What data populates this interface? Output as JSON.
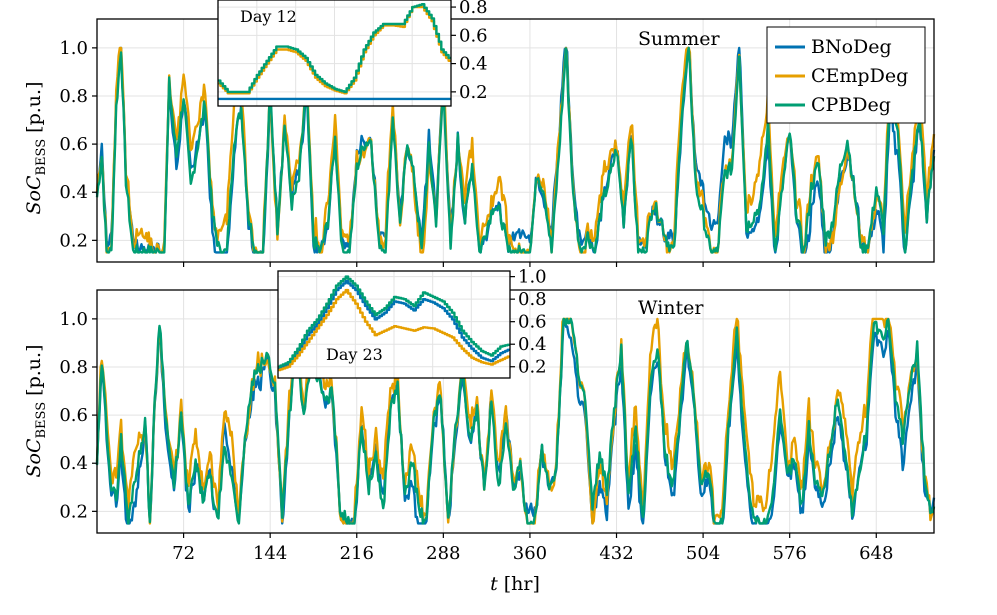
{
  "colors": {
    "BNoDeg": "#0072b2",
    "CEmpDeg": "#e69f00",
    "CPBDeg": "#009e73"
  },
  "chart_data": [
    {
      "type": "line",
      "panel": "top",
      "season_label": "Summer",
      "ylabel": "SoC_BESS [p.u.]",
      "ylabel_parts": {
        "main": "SoC",
        "sub": "BESS",
        "unit": "[p.u.]"
      },
      "xlim": [
        0,
        696
      ],
      "ylim": [
        0.11,
        1.12
      ],
      "xticks": [
        72,
        144,
        216,
        288,
        360,
        432,
        504,
        576,
        648
      ],
      "yticks": [
        0.2,
        0.4,
        0.6,
        0.8,
        1.0
      ],
      "ytick_labels": [
        "0.2",
        "0.4",
        "0.6",
        "0.8",
        "1.0"
      ],
      "legend": [
        "BNoDeg",
        "CEmpDeg",
        "CPBDeg"
      ],
      "legend_position": "top-right",
      "series_keys": [
        {
          "name": "CPBDeg",
          "x": [
            0,
            4,
            8,
            12,
            16,
            20,
            24,
            30,
            36,
            40,
            44,
            48,
            52,
            56,
            60,
            66,
            72,
            78,
            84,
            90,
            96,
            102,
            108,
            114,
            120,
            126,
            132,
            138,
            144,
            150,
            156,
            162,
            168,
            174,
            180,
            186,
            192,
            198,
            204,
            210,
            216,
            222,
            228,
            234,
            240,
            246,
            252,
            258,
            264,
            270,
            276,
            282,
            288,
            294,
            300,
            306,
            312,
            318,
            324,
            330,
            336,
            342,
            348,
            354,
            360,
            366,
            372,
            378,
            384,
            390,
            396,
            402,
            408,
            414,
            420,
            426,
            432,
            438,
            444,
            450,
            456,
            462,
            468,
            474,
            480,
            486,
            492,
            498,
            504,
            510,
            516,
            522,
            528,
            534,
            540,
            546,
            552,
            558,
            564,
            570,
            576,
            582,
            588,
            594,
            600,
            606,
            612,
            618,
            624,
            630,
            636,
            642,
            648,
            654,
            660,
            666,
            672,
            678,
            684,
            690,
            696
          ],
          "y": [
            0.38,
            0.55,
            0.15,
            0.15,
            0.75,
            1.0,
            0.45,
            0.15,
            0.15,
            0.15,
            0.15,
            0.15,
            0.15,
            0.15,
            0.85,
            0.55,
            0.8,
            0.42,
            0.6,
            0.78,
            0.3,
            0.15,
            0.15,
            0.62,
            0.75,
            0.3,
            0.15,
            0.15,
            0.82,
            0.25,
            0.68,
            0.35,
            0.45,
            0.85,
            0.2,
            0.15,
            0.28,
            0.62,
            0.15,
            0.15,
            0.5,
            0.6,
            0.62,
            0.2,
            0.15,
            0.72,
            0.25,
            0.62,
            0.45,
            0.15,
            0.58,
            0.28,
            0.85,
            0.15,
            0.62,
            0.28,
            0.52,
            0.15,
            0.25,
            0.35,
            0.3,
            0.15,
            0.15,
            0.15,
            0.15,
            0.48,
            0.4,
            0.15,
            0.55,
            1.0,
            0.38,
            0.15,
            0.22,
            0.15,
            0.35,
            0.45,
            0.58,
            0.28,
            0.65,
            0.15,
            0.15,
            0.35,
            0.3,
            0.2,
            0.15,
            0.72,
            1.0,
            0.42,
            0.3,
            0.15,
            0.15,
            0.48,
            0.5,
            0.98,
            0.25,
            0.3,
            0.35,
            0.68,
            0.15,
            0.42,
            0.65,
            0.3,
            0.15,
            0.42,
            0.52,
            0.2,
            0.28,
            0.5,
            0.62,
            0.4,
            0.15,
            0.2,
            0.42,
            0.25,
            0.85,
            0.65,
            0.15,
            0.48,
            0.72,
            0.3,
            0.55
          ]
        },
        {
          "name": "CEmpDeg",
          "offset": 0.0
        },
        {
          "name": "BNoDeg",
          "offset": 0.0
        }
      ],
      "inset": {
        "label": "Day 12",
        "ylim": [
          0.1,
          0.85
        ],
        "yticks": [
          0.2,
          0.4,
          0.6,
          0.8
        ],
        "ytick_labels": [
          "0.2",
          "0.4",
          "0.6",
          "0.8"
        ],
        "x": [
          0,
          1,
          2,
          3,
          4,
          5,
          6,
          7,
          8,
          9,
          10,
          11,
          12,
          13,
          14,
          15,
          16,
          17,
          18,
          19,
          20,
          21,
          22,
          23,
          24
        ],
        "CPBDeg": [
          0.28,
          0.2,
          0.2,
          0.2,
          0.32,
          0.42,
          0.52,
          0.52,
          0.5,
          0.44,
          0.32,
          0.26,
          0.22,
          0.2,
          0.3,
          0.5,
          0.62,
          0.68,
          0.68,
          0.68,
          0.8,
          0.82,
          0.72,
          0.5,
          0.42
        ],
        "CEmpDeg": [
          0.26,
          0.19,
          0.19,
          0.19,
          0.3,
          0.4,
          0.5,
          0.5,
          0.48,
          0.42,
          0.3,
          0.24,
          0.21,
          0.19,
          0.28,
          0.48,
          0.6,
          0.67,
          0.67,
          0.66,
          0.8,
          0.8,
          0.7,
          0.48,
          0.4
        ],
        "BNoDeg": [
          0.15,
          0.15,
          0.15,
          0.15,
          0.15,
          0.15,
          0.15,
          0.15,
          0.15,
          0.15,
          0.15,
          0.15,
          0.15,
          0.15,
          0.15,
          0.15,
          0.15,
          0.15,
          0.15,
          0.15,
          0.15,
          0.15,
          0.15,
          0.15,
          0.15
        ]
      }
    },
    {
      "type": "line",
      "panel": "bottom",
      "season_label": "Winter",
      "xlabel": "t [hr]",
      "xlabel_parts": {
        "var": "t",
        "unit": "[hr]"
      },
      "ylabel": "SoC_BESS [p.u.]",
      "ylabel_parts": {
        "main": "SoC",
        "sub": "BESS",
        "unit": "[p.u.]"
      },
      "xlim": [
        0,
        696
      ],
      "ylim": [
        0.11,
        1.12
      ],
      "xticks": [
        72,
        144,
        216,
        288,
        360,
        432,
        504,
        576,
        648
      ],
      "xtick_labels": [
        "72",
        "144",
        "216",
        "288",
        "360",
        "432",
        "504",
        "576",
        "648"
      ],
      "yticks": [
        0.2,
        0.4,
        0.6,
        0.8,
        1.0
      ],
      "ytick_labels": [
        "0.2",
        "0.4",
        "0.6",
        "0.8",
        "1.0"
      ],
      "series_keys": [
        {
          "name": "CPBDeg",
          "x": [
            0,
            4,
            8,
            12,
            16,
            20,
            26,
            30,
            36,
            40,
            44,
            48,
            52,
            58,
            64,
            70,
            76,
            82,
            88,
            94,
            100,
            106,
            112,
            118,
            124,
            130,
            136,
            142,
            148,
            154,
            160,
            166,
            172,
            178,
            184,
            190,
            196,
            202,
            208,
            214,
            220,
            226,
            232,
            238,
            244,
            250,
            256,
            262,
            268,
            274,
            280,
            286,
            292,
            298,
            304,
            310,
            316,
            322,
            328,
            334,
            340,
            346,
            352,
            358,
            364,
            370,
            376,
            382,
            388,
            394,
            400,
            406,
            412,
            418,
            424,
            430,
            436,
            442,
            448,
            454,
            460,
            466,
            472,
            478,
            484,
            490,
            496,
            502,
            508,
            514,
            520,
            526,
            532,
            538,
            544,
            550,
            556,
            562,
            568,
            574,
            580,
            586,
            592,
            598,
            604,
            610,
            616,
            622,
            628,
            634,
            640,
            646,
            652,
            658,
            664,
            670,
            676,
            682,
            688,
            694,
            696
          ],
          "y": [
            0.4,
            0.82,
            0.55,
            0.3,
            0.25,
            0.5,
            0.15,
            0.3,
            0.45,
            0.58,
            0.15,
            0.65,
            1.0,
            0.55,
            0.3,
            0.6,
            0.22,
            0.4,
            0.25,
            0.35,
            0.15,
            0.45,
            0.35,
            0.15,
            0.55,
            0.75,
            0.8,
            0.85,
            0.72,
            0.2,
            0.6,
            0.9,
            0.58,
            0.82,
            0.75,
            0.65,
            0.7,
            0.22,
            0.15,
            0.15,
            0.55,
            0.3,
            0.42,
            0.2,
            0.62,
            0.72,
            0.25,
            0.42,
            0.2,
            0.15,
            0.6,
            0.68,
            0.15,
            0.55,
            0.78,
            0.5,
            0.62,
            0.3,
            0.65,
            0.28,
            0.55,
            0.3,
            0.38,
            0.15,
            0.15,
            0.45,
            0.3,
            0.38,
            1.0,
            1.0,
            0.8,
            0.65,
            0.2,
            0.45,
            0.28,
            0.62,
            0.88,
            0.25,
            0.55,
            0.15,
            0.72,
            0.88,
            0.48,
            0.28,
            0.55,
            0.92,
            0.7,
            0.3,
            0.38,
            0.15,
            0.15,
            0.62,
            0.95,
            0.5,
            0.2,
            0.15,
            0.15,
            0.28,
            0.6,
            0.35,
            0.42,
            0.22,
            0.55,
            0.3,
            0.28,
            0.48,
            0.68,
            0.45,
            0.2,
            0.35,
            0.55,
            1.0,
            0.92,
            0.98,
            0.68,
            0.5,
            0.72,
            0.88,
            0.35,
            0.18,
            0.22
          ]
        },
        {
          "name": "CEmpDeg",
          "offset": 0.0
        },
        {
          "name": "BNoDeg",
          "offset": 0.0
        }
      ],
      "inset": {
        "label": "Day 23",
        "ylim": [
          0.1,
          1.05
        ],
        "yticks": [
          0.2,
          0.4,
          0.6,
          0.8,
          1.0
        ],
        "ytick_labels": [
          "0.2",
          "0.4",
          "0.6",
          "0.8",
          "1.0"
        ],
        "x": [
          0,
          1,
          2,
          3,
          4,
          5,
          6,
          7,
          8,
          9,
          10,
          11,
          12,
          13,
          14,
          15,
          16,
          17,
          18,
          19,
          20,
          21,
          22,
          23,
          24
        ],
        "CPBDeg": [
          0.2,
          0.24,
          0.36,
          0.52,
          0.62,
          0.76,
          0.92,
          1.0,
          0.92,
          0.78,
          0.66,
          0.72,
          0.82,
          0.8,
          0.74,
          0.86,
          0.82,
          0.78,
          0.68,
          0.52,
          0.42,
          0.34,
          0.3,
          0.38,
          0.4
        ],
        "BNoDeg": [
          0.18,
          0.22,
          0.33,
          0.48,
          0.58,
          0.72,
          0.88,
          0.96,
          0.88,
          0.74,
          0.62,
          0.68,
          0.78,
          0.76,
          0.7,
          0.8,
          0.77,
          0.72,
          0.62,
          0.46,
          0.36,
          0.28,
          0.25,
          0.32,
          0.36
        ],
        "CEmpDeg": [
          0.17,
          0.2,
          0.3,
          0.42,
          0.54,
          0.66,
          0.8,
          0.88,
          0.76,
          0.6,
          0.48,
          0.52,
          0.56,
          0.54,
          0.52,
          0.55,
          0.54,
          0.5,
          0.46,
          0.36,
          0.28,
          0.24,
          0.22,
          0.26,
          0.3
        ]
      }
    }
  ]
}
